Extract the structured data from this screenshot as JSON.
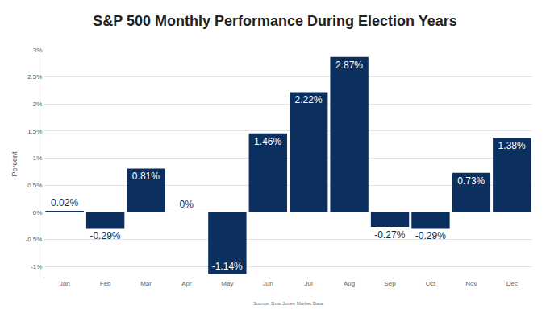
{
  "chart_data": {
    "type": "bar",
    "title": "S&P 500 Monthly Performance During Election Years",
    "y_label": "Percent",
    "source": "Source: Dow Jones Market Data",
    "categories": [
      "Jan",
      "Feb",
      "Mar",
      "Apr",
      "May",
      "Jun",
      "Jul",
      "Aug",
      "Sep",
      "Oct",
      "Nov",
      "Dec"
    ],
    "values": [
      0.02,
      -0.29,
      0.81,
      0,
      -1.14,
      1.46,
      2.22,
      2.87,
      -0.27,
      -0.29,
      0.73,
      1.38
    ],
    "value_labels": [
      "0.02%",
      "-0.29%",
      "0.81%",
      "0%",
      "-1.14%",
      "1.46%",
      "2.22%",
      "2.87%",
      "-0.27%",
      "-0.29%",
      "0.73%",
      "1.38%"
    ],
    "color": "#0b2f5e",
    "data_labels": true,
    "ylim": [
      -1.22,
      3
    ],
    "yticks": [
      {
        "value": -1,
        "label": "-1%"
      },
      {
        "value": -0.5,
        "label": "-0.5%"
      },
      {
        "value": 0,
        "label": "0%"
      },
      {
        "value": 0.5,
        "label": "0.5%"
      },
      {
        "value": 1,
        "label": "1%"
      },
      {
        "value": 1.5,
        "label": "1.5%"
      },
      {
        "value": 2,
        "label": "2%"
      },
      {
        "value": 2.5,
        "label": "2.5%"
      },
      {
        "value": 3,
        "label": "3%"
      }
    ],
    "grid": true
  }
}
